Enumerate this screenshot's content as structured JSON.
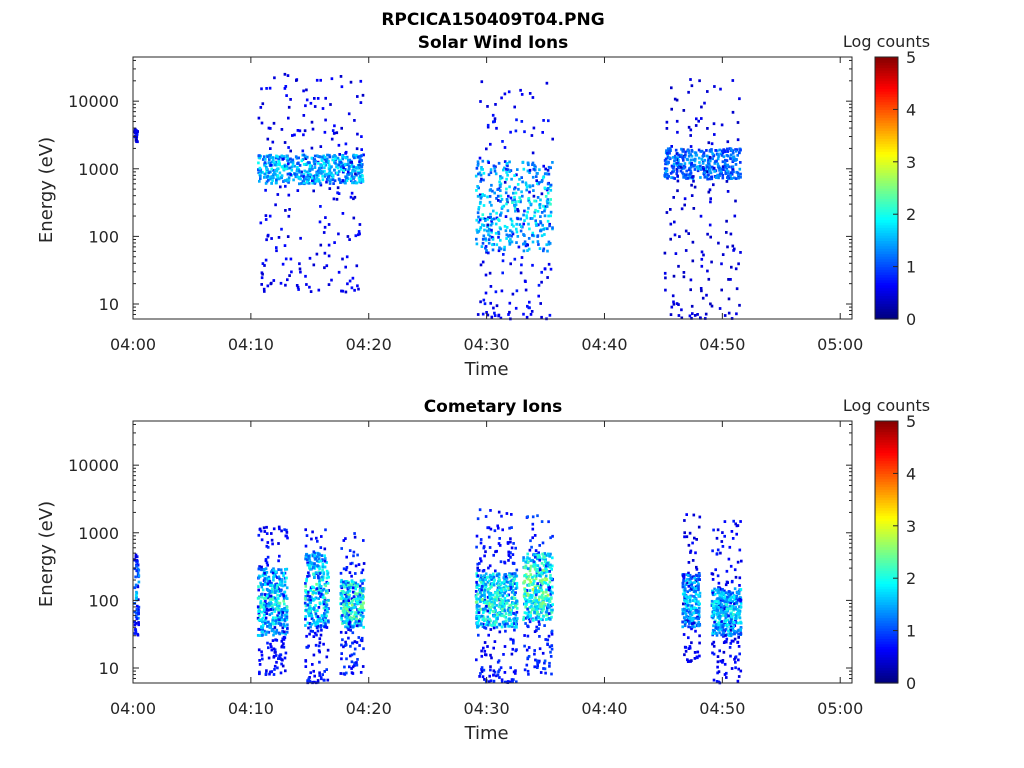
{
  "figure_title": "RPCICA150409T04.PNG",
  "chart_data": [
    {
      "type": "heatmap",
      "title": "Solar Wind Ions",
      "xlabel": "Time",
      "ylabel": "Energy (eV)",
      "x_ticks": [
        "04:00",
        "04:10",
        "04:20",
        "04:30",
        "04:40",
        "04:50",
        "05:00"
      ],
      "x_range_minutes": [
        0,
        61
      ],
      "y_scale": "log",
      "y_ticks": [
        "10",
        "100",
        "1000",
        "10000"
      ],
      "y_range": [
        6,
        45000
      ],
      "colorbar": {
        "label": "Log counts",
        "ticks": [
          "0",
          "1",
          "2",
          "3",
          "4",
          "5"
        ],
        "range": [
          0,
          5
        ],
        "colormap": "jet"
      },
      "grid": false,
      "bursts": [
        {
          "t_start_min": 0.0,
          "t_end_min": 0.3,
          "e_low": 2500,
          "e_high": 4000,
          "peak_log_counts": 0.8
        },
        {
          "t_start_min": 10.5,
          "t_end_min": 19.5,
          "e_low": 15,
          "e_high": 25000,
          "core_e_low": 600,
          "core_e_high": 1600,
          "peak_log_counts": 2.0
        },
        {
          "t_start_min": 29.0,
          "t_end_min": 35.5,
          "e_low": 6,
          "e_high": 20000,
          "core_e_low": 60,
          "core_e_high": 1300,
          "peak_log_counts": 2.2
        },
        {
          "t_start_min": 45.0,
          "t_end_min": 51.5,
          "e_low": 6,
          "e_high": 25000,
          "core_e_low": 700,
          "core_e_high": 2000,
          "peak_log_counts": 1.6
        }
      ]
    },
    {
      "type": "heatmap",
      "title": "Cometary Ions",
      "xlabel": "Time",
      "ylabel": "Energy (eV)",
      "x_ticks": [
        "04:00",
        "04:10",
        "04:20",
        "04:30",
        "04:40",
        "04:50",
        "05:00"
      ],
      "x_range_minutes": [
        0,
        61
      ],
      "y_scale": "log",
      "y_ticks": [
        "10",
        "100",
        "1000",
        "10000"
      ],
      "y_range": [
        6,
        45000
      ],
      "colorbar": {
        "label": "Log counts",
        "ticks": [
          "0",
          "1",
          "2",
          "3",
          "4",
          "5"
        ],
        "range": [
          0,
          5
        ],
        "colormap": "jet"
      },
      "grid": false,
      "bursts": [
        {
          "t_start_min": 0.0,
          "t_end_min": 0.4,
          "e_low": 30,
          "e_high": 500,
          "peak_log_counts": 2.0
        },
        {
          "t_start_min": 10.5,
          "t_end_min": 13.0,
          "e_low": 8,
          "e_high": 1300,
          "core_e_low": 30,
          "core_e_high": 300,
          "peak_log_counts": 2.4
        },
        {
          "t_start_min": 14.5,
          "t_end_min": 16.5,
          "e_low": 6,
          "e_high": 1300,
          "core_e_low": 40,
          "core_e_high": 500,
          "peak_log_counts": 2.6
        },
        {
          "t_start_min": 17.5,
          "t_end_min": 19.5,
          "e_low": 8,
          "e_high": 1000,
          "core_e_low": 40,
          "core_e_high": 200,
          "peak_log_counts": 2.8
        },
        {
          "t_start_min": 29.0,
          "t_end_min": 32.5,
          "e_low": 6,
          "e_high": 2200,
          "core_e_low": 40,
          "core_e_high": 250,
          "peak_log_counts": 2.6
        },
        {
          "t_start_min": 33.0,
          "t_end_min": 35.5,
          "e_low": 8,
          "e_high": 1800,
          "core_e_low": 50,
          "core_e_high": 500,
          "peak_log_counts": 3.0
        },
        {
          "t_start_min": 46.5,
          "t_end_min": 48.0,
          "e_low": 12,
          "e_high": 2000,
          "core_e_low": 40,
          "core_e_high": 250,
          "peak_log_counts": 2.0
        },
        {
          "t_start_min": 49.0,
          "t_end_min": 51.5,
          "e_low": 6,
          "e_high": 1500,
          "core_e_low": 30,
          "core_e_high": 150,
          "peak_log_counts": 2.2
        }
      ]
    }
  ]
}
